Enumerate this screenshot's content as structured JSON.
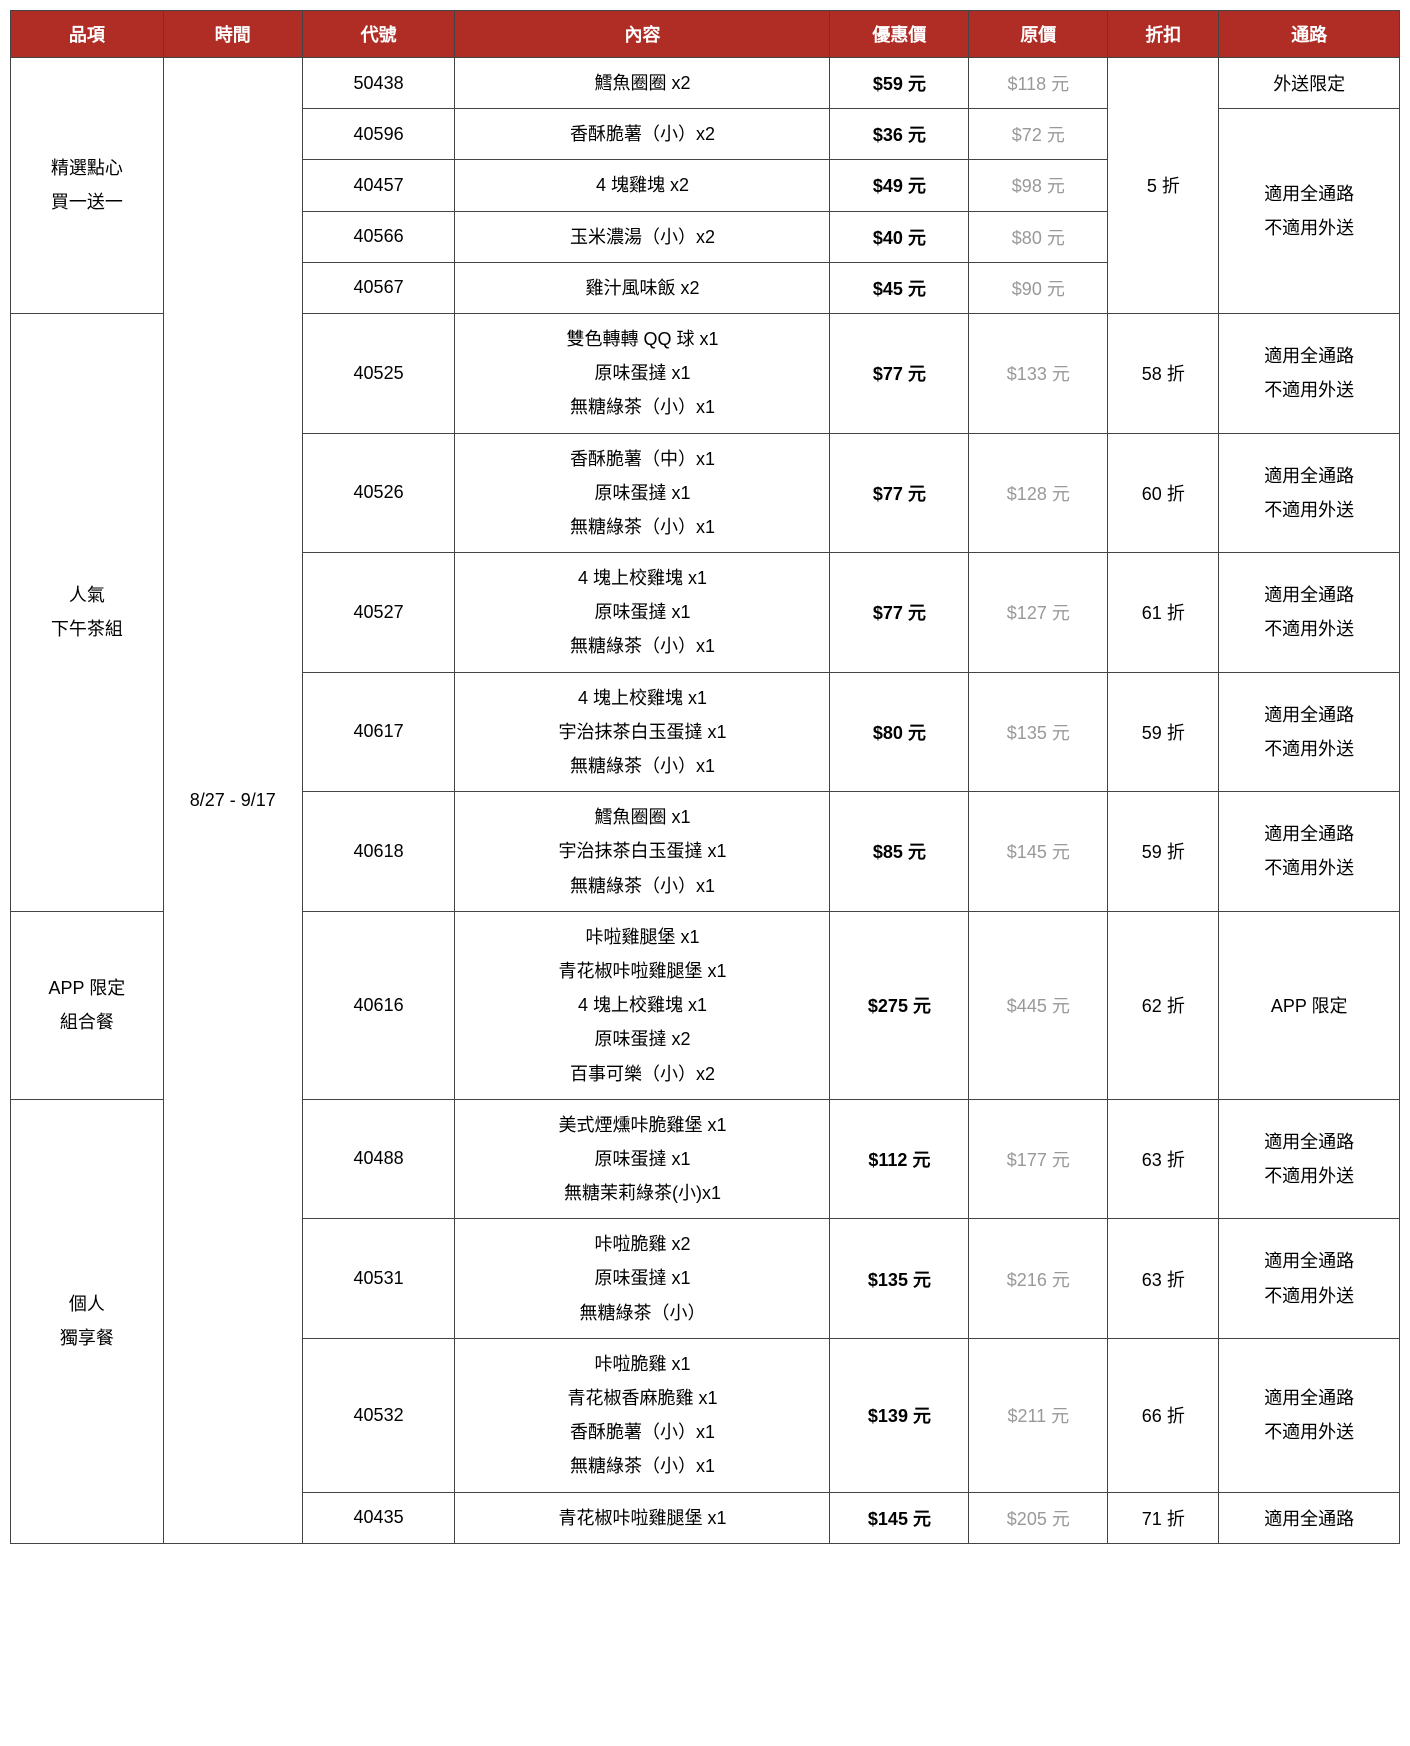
{
  "headers": [
    "品項",
    "時間",
    "代號",
    "內容",
    "優惠價",
    "原價",
    "折扣",
    "通路"
  ],
  "period": "8/27 - 9/17",
  "cat1": {
    "l1": "精選點心",
    "l2": "買一送一"
  },
  "cat2": {
    "l1": "人氣",
    "l2": "下午茶組"
  },
  "cat3": {
    "l1": "APP 限定",
    "l2": "組合餐"
  },
  "cat4": {
    "l1": "個人",
    "l2": "獨享餐"
  },
  "ch_all": {
    "l1": "適用全通路",
    "l2": "不適用外送"
  },
  "ch_delivery": "外送限定",
  "ch_app": "APP 限定",
  "ch_allonly": "適用全通路",
  "disc_5": "5 折",
  "r1": {
    "code": "50438",
    "content": [
      "鱈魚圈圈 x2"
    ],
    "sale": "$59 元",
    "orig": "$118 元"
  },
  "r2": {
    "code": "40596",
    "content": [
      "香酥脆薯（小）x2"
    ],
    "sale": "$36 元",
    "orig": "$72 元"
  },
  "r3": {
    "code": "40457",
    "content": [
      "4 塊雞塊 x2"
    ],
    "sale": "$49 元",
    "orig": "$98 元"
  },
  "r4": {
    "code": "40566",
    "content": [
      "玉米濃湯（小）x2"
    ],
    "sale": "$40 元",
    "orig": "$80 元"
  },
  "r5": {
    "code": "40567",
    "content": [
      "雞汁風味飯 x2"
    ],
    "sale": "$45 元",
    "orig": "$90 元"
  },
  "r6": {
    "code": "40525",
    "content": [
      "雙色轉轉 QQ 球 x1",
      "原味蛋撻 x1",
      "無糖綠茶（小）x1"
    ],
    "sale": "$77 元",
    "orig": "$133 元",
    "disc": "58 折"
  },
  "r7": {
    "code": "40526",
    "content": [
      "香酥脆薯（中）x1",
      "原味蛋撻 x1",
      "無糖綠茶（小）x1"
    ],
    "sale": "$77 元",
    "orig": "$128 元",
    "disc": "60 折"
  },
  "r8": {
    "code": "40527",
    "content": [
      "4 塊上校雞塊 x1",
      "原味蛋撻 x1",
      "無糖綠茶（小）x1"
    ],
    "sale": "$77 元",
    "orig": "$127 元",
    "disc": "61 折"
  },
  "r9": {
    "code": "40617",
    "content": [
      "4 塊上校雞塊 x1",
      "宇治抹茶白玉蛋撻 x1",
      "無糖綠茶（小）x1"
    ],
    "sale": "$80 元",
    "orig": "$135 元",
    "disc": "59 折"
  },
  "r10": {
    "code": "40618",
    "content": [
      "鱈魚圈圈 x1",
      "宇治抹茶白玉蛋撻 x1",
      "無糖綠茶（小）x1"
    ],
    "sale": "$85 元",
    "orig": "$145 元",
    "disc": "59 折"
  },
  "r11": {
    "code": "40616",
    "content": [
      "咔啦雞腿堡 x1",
      "青花椒咔啦雞腿堡 x1",
      "4 塊上校雞塊 x1",
      "原味蛋撻 x2",
      "百事可樂（小）x2"
    ],
    "sale": "$275 元",
    "orig": "$445 元",
    "disc": "62 折"
  },
  "r12": {
    "code": "40488",
    "content": [
      "美式煙燻咔脆雞堡 x1",
      "原味蛋撻 x1",
      "無糖茉莉綠茶(小)x1"
    ],
    "sale": "$112 元",
    "orig": "$177 元",
    "disc": "63 折"
  },
  "r13": {
    "code": "40531",
    "content": [
      "咔啦脆雞 x2",
      "原味蛋撻 x1",
      "無糖綠茶（小）"
    ],
    "sale": "$135 元",
    "orig": "$216 元",
    "disc": "63 折"
  },
  "r14": {
    "code": "40532",
    "content": [
      "咔啦脆雞 x1",
      "青花椒香麻脆雞 x1",
      "香酥脆薯（小）x1",
      "無糖綠茶（小）x1"
    ],
    "sale": "$139 元",
    "orig": "$211 元",
    "disc": "66 折"
  },
  "r15": {
    "code": "40435",
    "content": [
      "青花椒咔啦雞腿堡 x1"
    ],
    "sale": "$145 元",
    "orig": "$205 元",
    "disc": "71 折"
  }
}
